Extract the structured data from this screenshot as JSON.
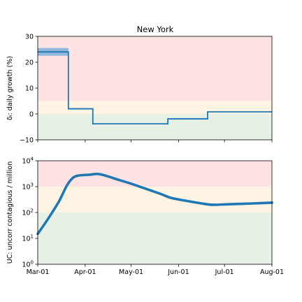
{
  "colors": {
    "band_red": "#fde3e3",
    "band_orange": "#fdf4e3",
    "band_green": "#e6f0e4",
    "line": "#1f77b4",
    "ci_fill": "#7fb0dc"
  },
  "chart_data": [
    {
      "type": "line",
      "title": "New York",
      "ylabel": "δᵢ: daily growth (%)",
      "ylim": [
        -10,
        30
      ],
      "yticks": [
        -10,
        0,
        10,
        20,
        30
      ],
      "ytick_labels": [
        "−10",
        "0",
        "10",
        "20",
        "30"
      ],
      "x_range": [
        "2020-03-01",
        "2020-08-01"
      ],
      "xticks": [
        "2020-03-01",
        "2020-04-01",
        "2020-05-01",
        "2020-06-01",
        "2020-07-01",
        "2020-08-01"
      ],
      "bands": [
        {
          "from": 5,
          "to": 30,
          "color": "band_red"
        },
        {
          "from": 0,
          "to": 5,
          "color": "band_orange"
        },
        {
          "from": -10,
          "to": 0,
          "color": "band_green"
        }
      ],
      "series": [
        {
          "style": "step",
          "segments": [
            {
              "start": "2020-03-01",
              "end": "2020-03-21",
              "value": 24,
              "lo": 22.5,
              "hi": 25.5
            },
            {
              "start": "2020-03-21",
              "end": "2020-04-06",
              "value": 2,
              "lo": 1.7,
              "hi": 2.3
            },
            {
              "start": "2020-04-06",
              "end": "2020-05-25",
              "value": -3.8,
              "lo": -3.9,
              "hi": -3.7
            },
            {
              "start": "2020-05-25",
              "end": "2020-06-20",
              "value": -1.9,
              "lo": -2.2,
              "hi": -1.6
            },
            {
              "start": "2020-06-20",
              "end": "2020-08-01",
              "value": 0.8,
              "lo": 0.7,
              "hi": 0.9
            }
          ]
        }
      ]
    },
    {
      "type": "line",
      "ylabel": "UC: uncorr contagious / million",
      "yscale": "log",
      "ylim": [
        1,
        10000
      ],
      "yticks": [
        1,
        10,
        100,
        1000,
        10000
      ],
      "ytick_labels": [
        {
          "base": "10",
          "exp": "0"
        },
        {
          "base": "10",
          "exp": "1"
        },
        {
          "base": "10",
          "exp": "2"
        },
        {
          "base": "10",
          "exp": "3"
        },
        {
          "base": "10",
          "exp": "4"
        }
      ],
      "x_range": [
        "2020-03-01",
        "2020-08-01"
      ],
      "xticks": [
        "2020-03-01",
        "2020-04-01",
        "2020-05-01",
        "2020-06-01",
        "2020-07-01",
        "2020-08-01"
      ],
      "xtick_labels": [
        "Mar-01",
        "Apr-01",
        "May-01",
        "Jun-01",
        "Jul-01",
        "Aug-01"
      ],
      "bands": [
        {
          "from": 1000,
          "to": 10000,
          "color": "band_red"
        },
        {
          "from": 100,
          "to": 1000,
          "color": "band_orange"
        },
        {
          "from": 1,
          "to": 100,
          "color": "band_green"
        }
      ],
      "series": [
        {
          "style": "line",
          "points": [
            {
              "x": "2020-03-01",
              "y": 15
            },
            {
              "x": "2020-03-08",
              "y": 60
            },
            {
              "x": "2020-03-15",
              "y": 280
            },
            {
              "x": "2020-03-20",
              "y": 1100
            },
            {
              "x": "2020-03-24",
              "y": 2200
            },
            {
              "x": "2020-03-28",
              "y": 2700
            },
            {
              "x": "2020-04-04",
              "y": 2900
            },
            {
              "x": "2020-04-09",
              "y": 3100
            },
            {
              "x": "2020-04-14",
              "y": 2700
            },
            {
              "x": "2020-04-22",
              "y": 1900
            },
            {
              "x": "2020-05-01",
              "y": 1300
            },
            {
              "x": "2020-05-10",
              "y": 850
            },
            {
              "x": "2020-05-20",
              "y": 530
            },
            {
              "x": "2020-05-27",
              "y": 370
            },
            {
              "x": "2020-06-05",
              "y": 290
            },
            {
              "x": "2020-06-15",
              "y": 230
            },
            {
              "x": "2020-06-23",
              "y": 200
            },
            {
              "x": "2020-07-05",
              "y": 210
            },
            {
              "x": "2020-07-20",
              "y": 225
            },
            {
              "x": "2020-08-01",
              "y": 240
            }
          ]
        }
      ]
    }
  ]
}
